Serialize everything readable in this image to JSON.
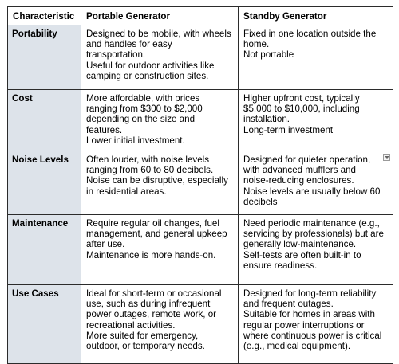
{
  "table": {
    "headers": [
      "Characteristic",
      "Portable Generator",
      "Standby Generator"
    ],
    "rows": [
      {
        "label": "Portability",
        "portable": [
          "Designed to be mobile, with wheels",
          "and handles for easy",
          "transportation.",
          "Useful for outdoor activities like",
          "camping or construction sites."
        ],
        "standby": [
          "Fixed in one location outside the",
          "home.",
          "Not portable"
        ]
      },
      {
        "label": "Cost",
        "portable": [
          "More affordable, with prices",
          "ranging from $300 to $2,000",
          "depending on the size and",
          "features.",
          "Lower initial investment."
        ],
        "standby": [
          "Higher upfront cost, typically",
          "$5,000 to $10,000, including",
          "installation.",
          "Long-term investment"
        ]
      },
      {
        "label": "Noise Levels",
        "portable": [
          "Often louder, with noise levels",
          "ranging from 60 to 80 decibels.",
          "Noise can be disruptive, especially",
          "in residential areas."
        ],
        "standby": [
          "Designed for quieter operation,",
          "with advanced mufflers and",
          "noise-reducing enclosures.",
          "Noise levels are usually below 60",
          "decibels"
        ]
      },
      {
        "label": "Maintenance",
        "portable": [
          "Require regular oil changes, fuel",
          "management, and general upkeep",
          "after use.",
          "Maintenance is more hands-on."
        ],
        "standby": [
          "Need periodic maintenance (e.g.,",
          "servicing by professionals) but are",
          "generally low-maintenance.",
          "Self-tests are often built-in to",
          "ensure readiness."
        ]
      },
      {
        "label": "Use Cases",
        "portable": [
          "Ideal for short-term or occasional",
          "use, such as during infrequent",
          "power outages, remote work, or",
          "recreational activities.",
          "More suited for emergency,",
          "outdoor, or temporary needs."
        ],
        "standby": [
          "Designed for long-term reliability",
          "and frequent outages.",
          "Suitable for homes in areas with",
          "regular power interruptions or",
          "where continuous power is critical",
          "(e.g., medical equipment)."
        ]
      }
    ]
  }
}
